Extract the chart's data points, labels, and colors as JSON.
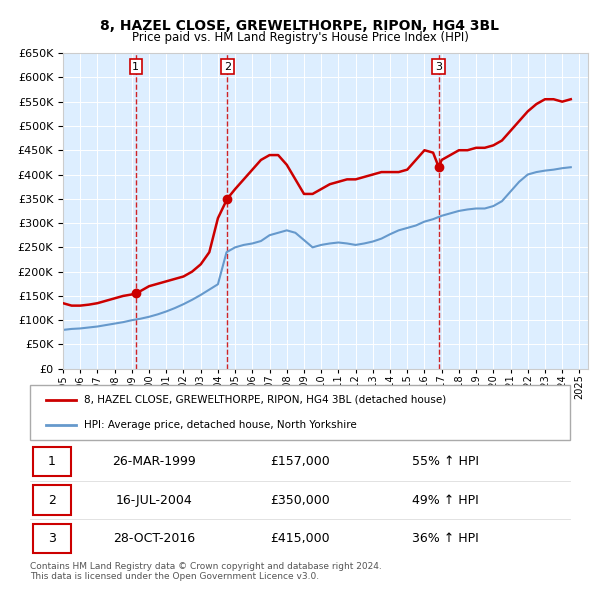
{
  "title": "8, HAZEL CLOSE, GREWELTHORPE, RIPON, HG4 3BL",
  "subtitle": "Price paid vs. HM Land Registry's House Price Index (HPI)",
  "property_label": "8, HAZEL CLOSE, GREWELTHORPE, RIPON, HG4 3BL (detached house)",
  "hpi_label": "HPI: Average price, detached house, North Yorkshire",
  "footer1": "Contains HM Land Registry data © Crown copyright and database right 2024.",
  "footer2": "This data is licensed under the Open Government Licence v3.0.",
  "sales": [
    {
      "num": 1,
      "date": "26-MAR-1999",
      "price": 157000,
      "pct": "55%",
      "year": 1999.23
    },
    {
      "num": 2,
      "date": "16-JUL-2004",
      "price": 350000,
      "pct": "49%",
      "year": 2004.54
    },
    {
      "num": 3,
      "date": "28-OCT-2016",
      "price": 415000,
      "pct": "36%",
      "year": 2016.83
    }
  ],
  "property_color": "#cc0000",
  "hpi_color": "#6699cc",
  "sale_marker_color": "#cc0000",
  "dashed_line_color": "#cc0000",
  "plot_bg": "#ddeeff",
  "ylim": [
    0,
    650000
  ],
  "xlim_start": 1995.0,
  "xlim_end": 2025.5,
  "yticks": [
    0,
    50000,
    100000,
    150000,
    200000,
    250000,
    300000,
    350000,
    400000,
    450000,
    500000,
    550000,
    600000,
    650000
  ],
  "xticks": [
    1995,
    1996,
    1997,
    1998,
    1999,
    2000,
    2001,
    2002,
    2003,
    2004,
    2005,
    2006,
    2007,
    2008,
    2009,
    2010,
    2011,
    2012,
    2013,
    2014,
    2015,
    2016,
    2017,
    2018,
    2019,
    2020,
    2021,
    2022,
    2023,
    2024,
    2025
  ],
  "property_series": {
    "x": [
      1995.0,
      1995.5,
      1996.0,
      1996.5,
      1997.0,
      1997.5,
      1998.0,
      1998.5,
      1999.0,
      1999.23,
      1999.5,
      2000.0,
      2000.5,
      2001.0,
      2001.5,
      2002.0,
      2002.5,
      2003.0,
      2003.5,
      2004.0,
      2004.54,
      2005.0,
      2005.5,
      2006.0,
      2006.5,
      2007.0,
      2007.5,
      2008.0,
      2008.5,
      2009.0,
      2009.5,
      2010.0,
      2010.5,
      2011.0,
      2011.5,
      2012.0,
      2012.5,
      2013.0,
      2013.5,
      2014.0,
      2014.5,
      2015.0,
      2015.5,
      2016.0,
      2016.5,
      2016.83,
      2017.0,
      2017.5,
      2018.0,
      2018.5,
      2019.0,
      2019.5,
      2020.0,
      2020.5,
      2021.0,
      2021.5,
      2022.0,
      2022.5,
      2023.0,
      2023.5,
      2024.0,
      2024.5
    ],
    "y": [
      135000,
      130000,
      130000,
      132000,
      135000,
      140000,
      145000,
      150000,
      153000,
      157000,
      160000,
      170000,
      175000,
      180000,
      185000,
      190000,
      200000,
      215000,
      240000,
      310000,
      350000,
      370000,
      390000,
      410000,
      430000,
      440000,
      440000,
      420000,
      390000,
      360000,
      360000,
      370000,
      380000,
      385000,
      390000,
      390000,
      395000,
      400000,
      405000,
      405000,
      405000,
      410000,
      430000,
      450000,
      445000,
      415000,
      430000,
      440000,
      450000,
      450000,
      455000,
      455000,
      460000,
      470000,
      490000,
      510000,
      530000,
      545000,
      555000,
      555000,
      550000,
      555000
    ]
  },
  "hpi_series": {
    "x": [
      1995.0,
      1995.5,
      1996.0,
      1996.5,
      1997.0,
      1997.5,
      1998.0,
      1998.5,
      1999.0,
      1999.5,
      2000.0,
      2000.5,
      2001.0,
      2001.5,
      2002.0,
      2002.5,
      2003.0,
      2003.5,
      2004.0,
      2004.5,
      2005.0,
      2005.5,
      2006.0,
      2006.5,
      2007.0,
      2007.5,
      2008.0,
      2008.5,
      2009.0,
      2009.5,
      2010.0,
      2010.5,
      2011.0,
      2011.5,
      2012.0,
      2012.5,
      2013.0,
      2013.5,
      2014.0,
      2014.5,
      2015.0,
      2015.5,
      2016.0,
      2016.5,
      2017.0,
      2017.5,
      2018.0,
      2018.5,
      2019.0,
      2019.5,
      2020.0,
      2020.5,
      2021.0,
      2021.5,
      2022.0,
      2022.5,
      2023.0,
      2023.5,
      2024.0,
      2024.5
    ],
    "y": [
      80000,
      82000,
      83000,
      85000,
      87000,
      90000,
      93000,
      96000,
      100000,
      103000,
      107000,
      112000,
      118000,
      125000,
      133000,
      142000,
      152000,
      163000,
      174000,
      240000,
      250000,
      255000,
      258000,
      263000,
      275000,
      280000,
      285000,
      280000,
      265000,
      250000,
      255000,
      258000,
      260000,
      258000,
      255000,
      258000,
      262000,
      268000,
      277000,
      285000,
      290000,
      295000,
      303000,
      308000,
      315000,
      320000,
      325000,
      328000,
      330000,
      330000,
      335000,
      345000,
      365000,
      385000,
      400000,
      405000,
      408000,
      410000,
      413000,
      415000
    ]
  }
}
